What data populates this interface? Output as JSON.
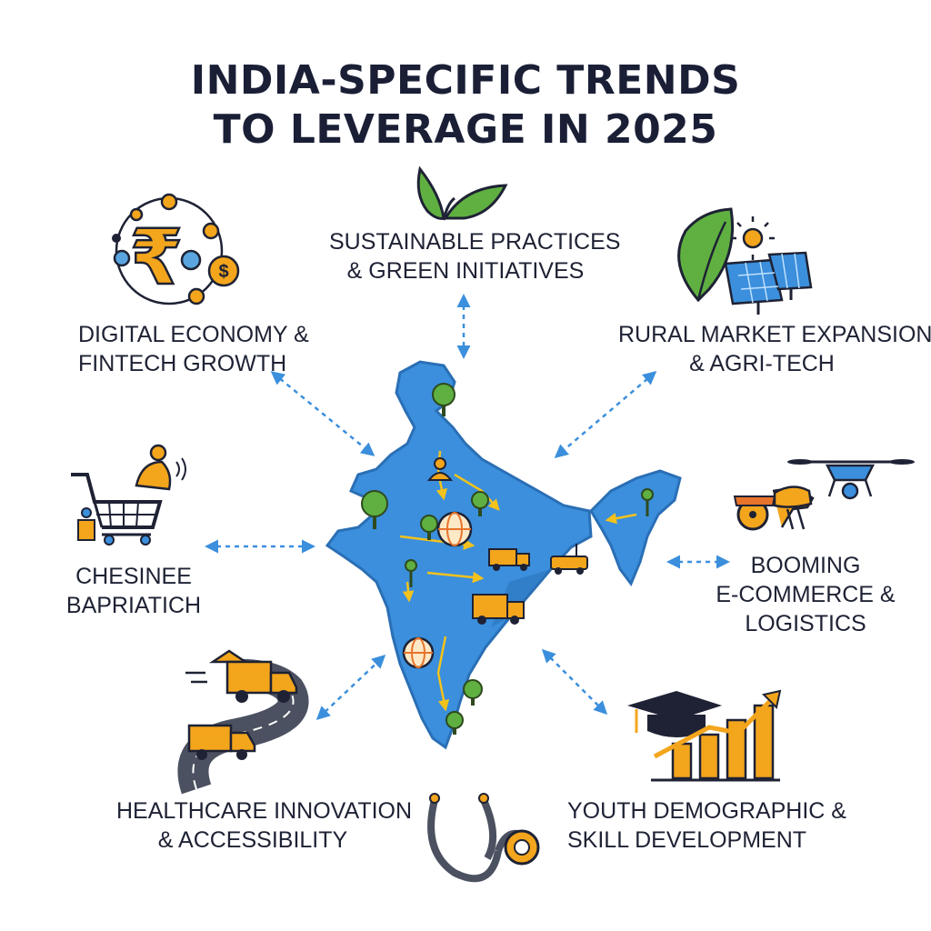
{
  "title": {
    "line1": "INDIA-SPECIFIC TRENDS",
    "line2": "TO LEVERAGE IN 2025"
  },
  "trends": {
    "sustainable": {
      "line1": "SUSTAINABLE PRACTICES",
      "line2": "& GREEN INITIATIVES",
      "icon": "leaf-sprout-icon"
    },
    "digital": {
      "line1": "DIGITAL ECONOMY &",
      "line2": "FINTECH GROWTH",
      "icon": "rupee-network-icon"
    },
    "rural": {
      "line1": "RURAL MARKET EXPANSION",
      "line2": "& AGRI-TECH",
      "icon": "solar-leaf-icon"
    },
    "chesinee": {
      "line1": "CHESINEE",
      "line2": "BAPRIATICH",
      "icon": "shopping-cart-icon"
    },
    "ecommerce": {
      "line1": "BOOMING",
      "line2": "E-COMMERCE &",
      "line3": "LOGISTICS",
      "icon": "drone-oxcart-icon"
    },
    "healthcare": {
      "line1": "HEALTHCARE INNOVATION",
      "line2": "& ACCESSIBILITY",
      "icon": "stethoscope-icon"
    },
    "youth": {
      "line1": "YOUTH DEMOGRAPHIC &",
      "line2": "SKILL DEVELOPMENT",
      "icon": "graduation-chart-icon"
    }
  },
  "colors": {
    "map_blue": "#3b8fdc",
    "map_dark": "#2a6fb5",
    "accent_orange": "#f3a51c",
    "leaf_green": "#5fb041",
    "ink": "#1e2234",
    "arrow": "#3b8fdc"
  }
}
